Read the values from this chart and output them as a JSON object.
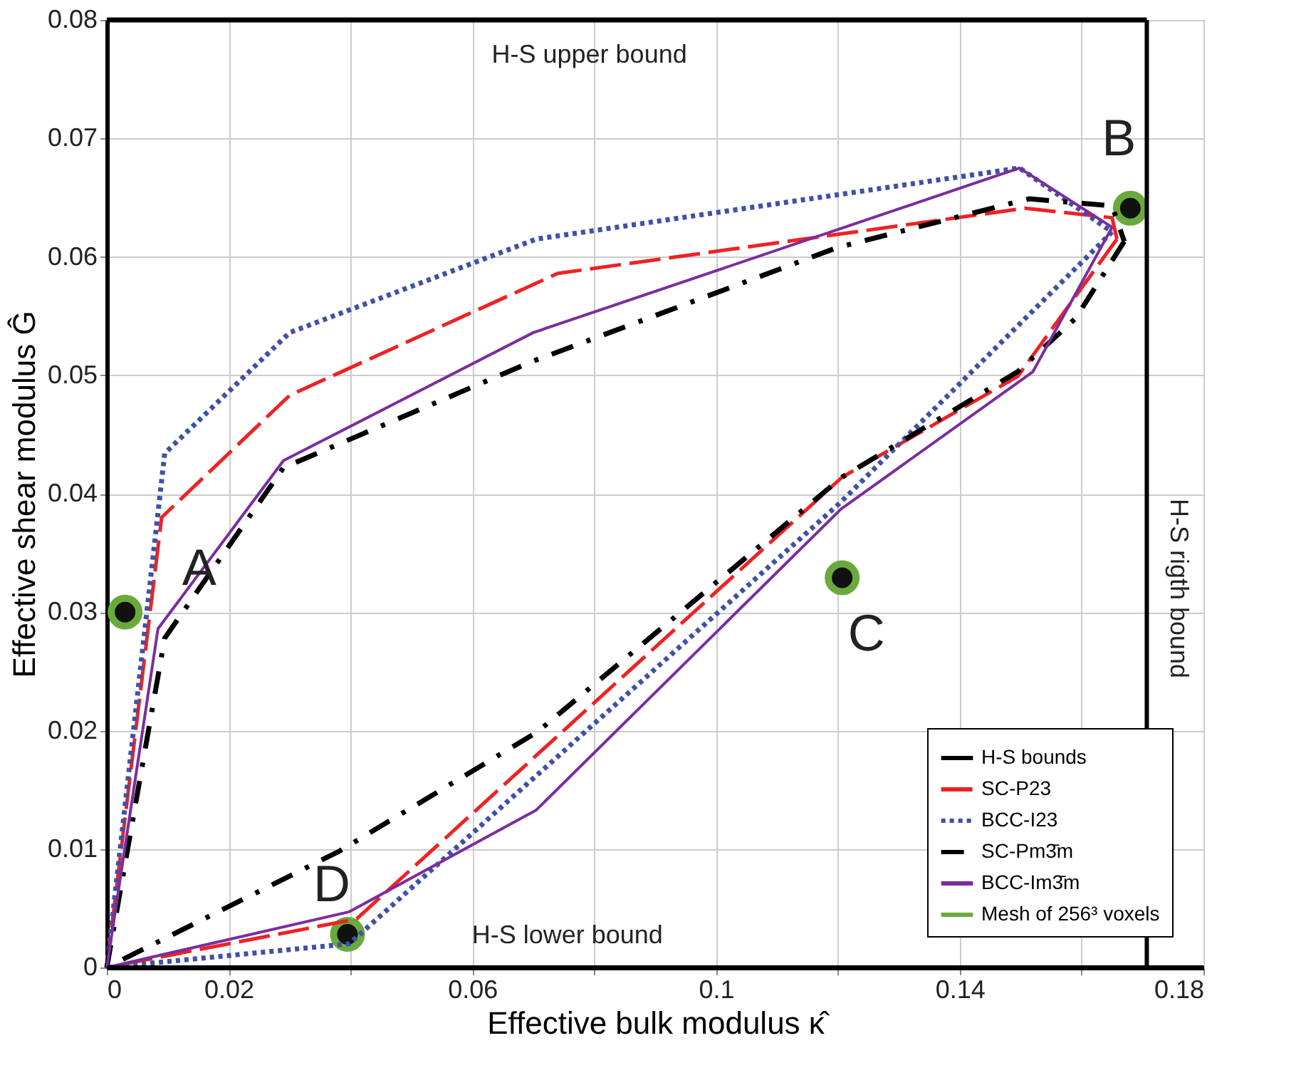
{
  "chart_data": {
    "type": "line",
    "xlabel": "Effective bulk modulus κ̂",
    "ylabel": "Effective shear modulus Ĝ",
    "xlim": [
      0,
      0.18
    ],
    "ylim": [
      0,
      0.08
    ],
    "xticks": [
      0,
      0.02,
      {
        "value": 0.04,
        "label": null
      },
      0.06,
      {
        "value": 0.08,
        "label": null
      },
      0.1,
      {
        "value": 0.12,
        "label": null
      },
      0.14,
      {
        "value": 0.16,
        "label": null
      },
      0.18
    ],
    "yticks": [
      0,
      0.01,
      0.02,
      0.03,
      0.04,
      0.05,
      0.06,
      0.07,
      0.08
    ],
    "grid": true,
    "legend": "bottom right",
    "series": [
      {
        "name": "H-S bounds",
        "color": "#000000",
        "line_style": "solid",
        "x": [
          0,
          0.1707
        ],
        "values": [
          0.08,
          0.08
        ]
      },
      {
        "name": "SC-P23",
        "color": "#ee2224",
        "line_style": "dashed",
        "x": [
          0,
          0.009,
          0.03,
          0.074,
          0.1507,
          0.165,
          0.1658
        ],
        "values": [
          0,
          0.038,
          0.0483,
          0.0586,
          0.0641,
          0.0633,
          0.0615
        ]
      },
      {
        "color": "#ee2224",
        "line_style": "dashed",
        "x": [
          0.1658,
          0.1495,
          0.1207,
          0.041,
          0
        ],
        "values": [
          0.0615,
          0.0499,
          0.0414,
          0.0041,
          0
        ]
      },
      {
        "name": "BCC-I23",
        "color": "#3f51a6",
        "line_style": "dotted",
        "x": [
          0,
          0.0095,
          0.03,
          0.0705,
          0.1498,
          0.165
        ],
        "values": [
          0,
          0.0434,
          0.0536,
          0.0615,
          0.0675,
          0.0621
        ]
      },
      {
        "color": "#3f51a6",
        "line_style": "dotted",
        "x": [
          0.165,
          0.1205,
          0.0398,
          0
        ],
        "values": [
          0.0621,
          0.0393,
          0.002,
          0
        ]
      },
      {
        "name": "SC-Pm3̄m",
        "color": "#000000",
        "line_style": "dashdot",
        "x": [
          0,
          0.0095,
          0.029,
          0.07,
          0.12,
          0.1514,
          0.165,
          0.167
        ],
        "values": [
          0,
          0.0278,
          0.0422,
          0.0512,
          0.0608,
          0.0649,
          0.0643,
          0.0613
        ]
      },
      {
        "color": "#000000",
        "line_style": "dashdot",
        "x": [
          0.167,
          0.159,
          0.1495,
          0.1207,
          0.0707,
          0.0381,
          0
        ],
        "values": [
          0.0613,
          0.0548,
          0.0503,
          0.0414,
          0.0199,
          0.0098,
          0
        ]
      },
      {
        "name": "BCC-Im3̄m",
        "color": "#7b2d9e",
        "line_style": "solid",
        "x": [
          0,
          0.0084,
          0.029,
          0.07,
          0.1498,
          0.165
        ],
        "values": [
          0,
          0.0286,
          0.0428,
          0.0536,
          0.0675,
          0.0625
        ]
      },
      {
        "color": "#7b2d9e",
        "line_style": "solid",
        "x": [
          0.165,
          0.152,
          0.1205,
          0.0705,
          0.0398,
          0
        ],
        "values": [
          0.0625,
          0.0503,
          0.0387,
          0.0133,
          0.0047,
          0
        ]
      },
      {
        "name": "Mesh of 256³ voxels",
        "type": "scatter",
        "marker": "circle",
        "color": "#6aaa3c",
        "x": [
          0.003,
          0.168,
          0.1207,
          0.0395
        ],
        "values": [
          0.03,
          0.0641,
          0.0329,
          0.0028
        ]
      }
    ],
    "ref_lines": [
      {
        "axis": "x",
        "value": 0.1707,
        "label": "H-S rigth bound",
        "color": "#000000"
      },
      {
        "axis": "y",
        "value": 0,
        "label": "H-S  lower bound",
        "color": "#000000"
      }
    ],
    "annotations": [
      "A",
      "B",
      "C",
      "D",
      "H-S  upper bound"
    ]
  }
}
